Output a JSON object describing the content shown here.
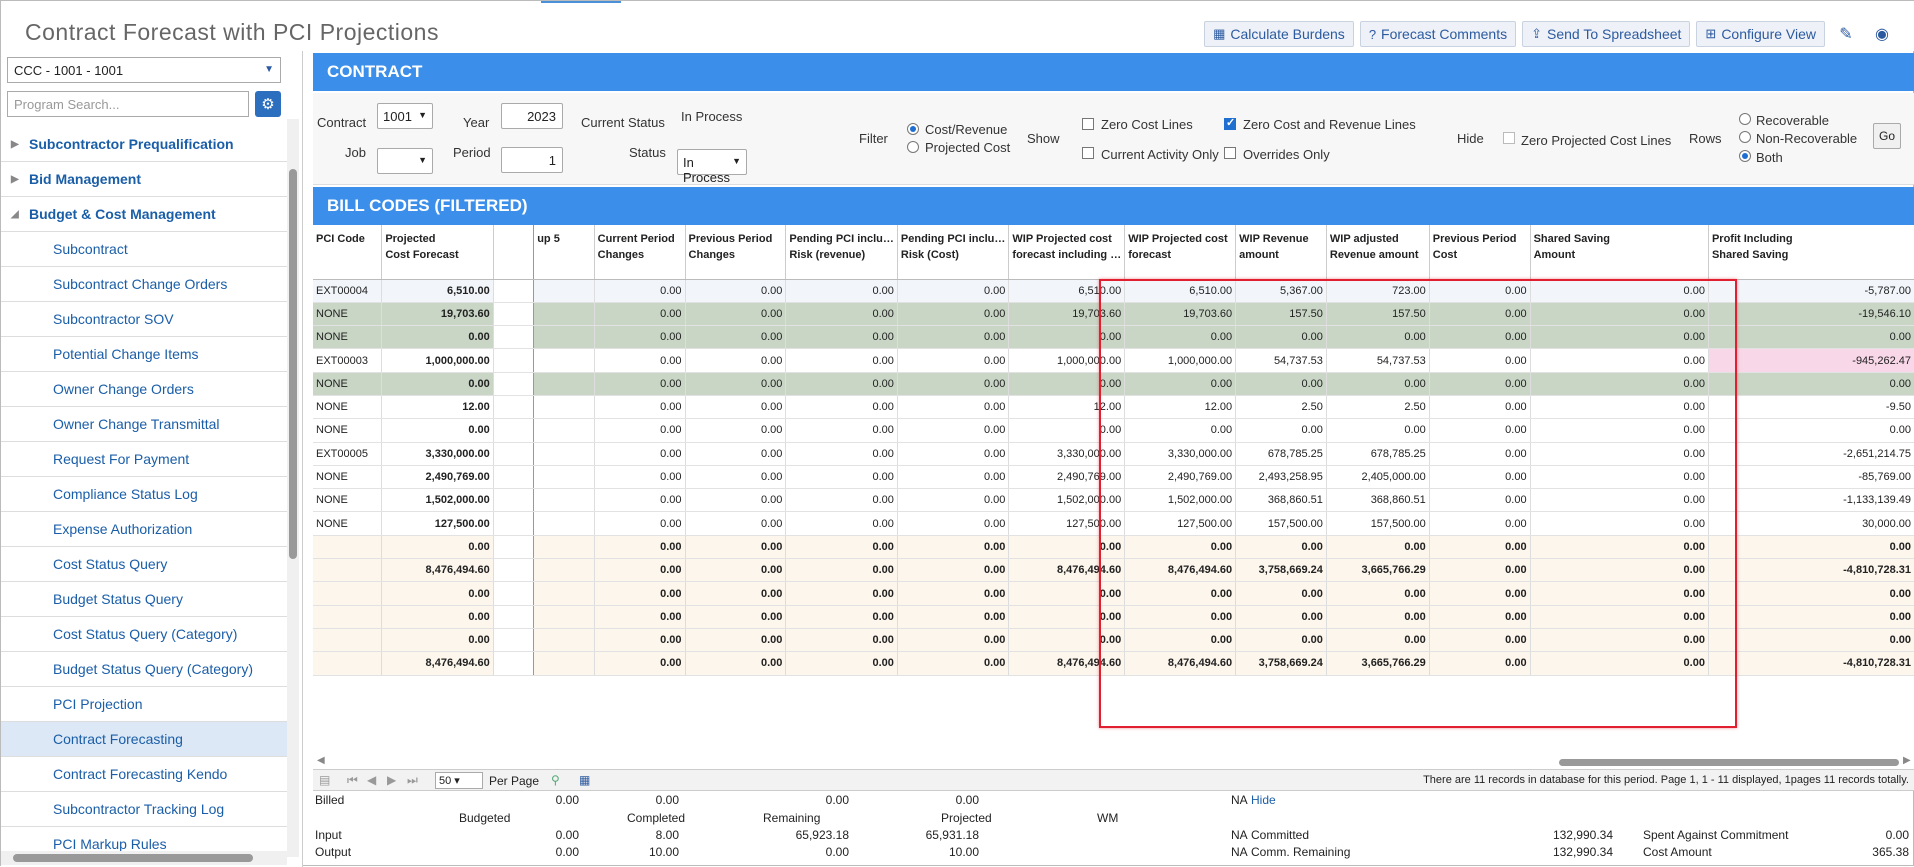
{
  "app_title": "Contract Forecast with PCI Projections",
  "header_buttons": {
    "calc": "Calculate Burdens",
    "comments": "Forecast Comments",
    "send": "Send To Spreadsheet",
    "configure": "Configure View"
  },
  "sidebar": {
    "company_select": "CCC - 1001 - 1001",
    "search_placeholder": "Program Search...",
    "items": [
      {
        "label": "Subcontractor Prequalification",
        "type": "group",
        "expanded": false
      },
      {
        "label": "Bid Management",
        "type": "group",
        "expanded": false
      },
      {
        "label": "Budget & Cost Management",
        "type": "group",
        "expanded": true
      },
      {
        "label": "Subcontract",
        "type": "child"
      },
      {
        "label": "Subcontract Change Orders",
        "type": "child"
      },
      {
        "label": "Subcontractor SOV",
        "type": "child"
      },
      {
        "label": "Potential Change Items",
        "type": "child"
      },
      {
        "label": "Owner Change Orders",
        "type": "child"
      },
      {
        "label": "Owner Change Transmittal",
        "type": "child"
      },
      {
        "label": "Request For Payment",
        "type": "child"
      },
      {
        "label": "Compliance Status Log",
        "type": "child"
      },
      {
        "label": "Expense Authorization",
        "type": "child"
      },
      {
        "label": "Cost Status Query",
        "type": "child"
      },
      {
        "label": "Budget Status Query",
        "type": "child"
      },
      {
        "label": "Cost Status Query (Category)",
        "type": "child"
      },
      {
        "label": "Budget Status Query (Category)",
        "type": "child"
      },
      {
        "label": "PCI Projection",
        "type": "child"
      },
      {
        "label": "Contract Forecasting",
        "type": "child",
        "active": true
      },
      {
        "label": "Contract Forecasting Kendo",
        "type": "child"
      },
      {
        "label": "Subcontractor Tracking Log",
        "type": "child"
      },
      {
        "label": "PCI Markup Rules",
        "type": "child"
      }
    ]
  },
  "contract_section": {
    "title": "CONTRACT",
    "contract_label": "Contract",
    "contract_value": "1001",
    "job_label": "Job",
    "job_value": "",
    "year_label": "Year",
    "year_value": "2023",
    "period_label": "Period",
    "period_value": "1",
    "current_status_label": "Current Status",
    "current_status_value": "In Process",
    "status_label": "Status",
    "status_value": "In Process",
    "filter_label": "Filter",
    "filter_cost_revenue": "Cost/Revenue",
    "filter_projected_cost": "Projected Cost",
    "show_label": "Show",
    "zero_cost_lines": "Zero Cost Lines",
    "current_activity_only": "Current Activity Only",
    "zero_cost_revenue_lines": "Zero Cost and Revenue Lines",
    "overrides_only": "Overrides Only",
    "hide_label": "Hide",
    "zero_projected_cost_lines": "Zero Projected Cost Lines",
    "rows_label": "Rows",
    "rows_recoverable": "Recoverable",
    "rows_nonrecoverable": "Non-Recoverable",
    "rows_both": "Both",
    "go": "Go"
  },
  "bill_codes": {
    "title": "BILL CODES (FILTERED)",
    "headers": [
      [
        "PCI Code",
        ""
      ],
      [
        "Projected",
        "Cost Forecast"
      ],
      [
        "",
        ""
      ],
      [
        "up 5",
        ""
      ],
      [
        "Current Period",
        "Changes"
      ],
      [
        "Previous Period",
        "Changes"
      ],
      [
        "Pending PCI inclu…",
        "Risk (revenue)"
      ],
      [
        "Pending PCI inclu…",
        "Risk (Cost)"
      ],
      [
        "WIP Projected cost",
        "forecast including …"
      ],
      [
        "WIP Projected cost",
        "forecast"
      ],
      [
        "WIP Revenue",
        "amount"
      ],
      [
        "WIP adjusted",
        "Revenue amount"
      ],
      [
        "Previous Period",
        "Cost"
      ],
      [
        "Shared Saving",
        "Amount"
      ],
      [
        "Profit Including",
        "Shared Saving"
      ]
    ],
    "rows": [
      {
        "style": "first",
        "cells": [
          "EXT00004",
          "6,510.00",
          "",
          "",
          "0.00",
          "0.00",
          "0.00",
          "0.00",
          "6,510.00",
          "6,510.00",
          "5,367.00",
          "723.00",
          "0.00",
          "0.00",
          "-5,787.00"
        ]
      },
      {
        "style": "green",
        "cells": [
          "NONE",
          "19,703.60",
          "",
          "",
          "0.00",
          "0.00",
          "0.00",
          "0.00",
          "19,703.60",
          "19,703.60",
          "157.50",
          "157.50",
          "0.00",
          "0.00",
          "-19,546.10"
        ]
      },
      {
        "style": "green",
        "cells": [
          "NONE",
          "0.00",
          "",
          "",
          "0.00",
          "0.00",
          "0.00",
          "0.00",
          "0.00",
          "0.00",
          "0.00",
          "0.00",
          "0.00",
          "0.00",
          "0.00"
        ]
      },
      {
        "style": "white",
        "pink_last": true,
        "cells": [
          "EXT00003",
          "1,000,000.00",
          "",
          "",
          "0.00",
          "0.00",
          "0.00",
          "0.00",
          "1,000,000.00",
          "1,000,000.00",
          "54,737.53",
          "54,737.53",
          "0.00",
          "0.00",
          "-945,262.47"
        ]
      },
      {
        "style": "green",
        "cells": [
          "NONE",
          "0.00",
          "",
          "",
          "0.00",
          "0.00",
          "0.00",
          "0.00",
          "0.00",
          "0.00",
          "0.00",
          "0.00",
          "0.00",
          "0.00",
          "0.00"
        ]
      },
      {
        "style": "white",
        "cells": [
          "NONE",
          "12.00",
          "",
          "",
          "0.00",
          "0.00",
          "0.00",
          "0.00",
          "12.00",
          "12.00",
          "2.50",
          "2.50",
          "0.00",
          "0.00",
          "-9.50"
        ]
      },
      {
        "style": "white",
        "cells": [
          "NONE",
          "0.00",
          "",
          "",
          "0.00",
          "0.00",
          "0.00",
          "0.00",
          "0.00",
          "0.00",
          "0.00",
          "0.00",
          "0.00",
          "0.00",
          "0.00"
        ]
      },
      {
        "style": "white",
        "cells": [
          "EXT00005",
          "3,330,000.00",
          "",
          "",
          "0.00",
          "0.00",
          "0.00",
          "0.00",
          "3,330,000.00",
          "3,330,000.00",
          "678,785.25",
          "678,785.25",
          "0.00",
          "0.00",
          "-2,651,214.75"
        ]
      },
      {
        "style": "white",
        "cells": [
          "NONE",
          "2,490,769.00",
          "",
          "",
          "0.00",
          "0.00",
          "0.00",
          "0.00",
          "2,490,769.00",
          "2,490,769.00",
          "2,493,258.95",
          "2,405,000.00",
          "0.00",
          "0.00",
          "-85,769.00"
        ]
      },
      {
        "style": "white",
        "cells": [
          "NONE",
          "1,502,000.00",
          "",
          "",
          "0.00",
          "0.00",
          "0.00",
          "0.00",
          "1,502,000.00",
          "1,502,000.00",
          "368,860.51",
          "368,860.51",
          "0.00",
          "0.00",
          "-1,133,139.49"
        ]
      },
      {
        "style": "white",
        "cells": [
          "NONE",
          "127,500.00",
          "",
          "",
          "0.00",
          "0.00",
          "0.00",
          "0.00",
          "127,500.00",
          "127,500.00",
          "157,500.00",
          "157,500.00",
          "0.00",
          "0.00",
          "30,000.00"
        ]
      },
      {
        "style": "cream",
        "cells": [
          "",
          "0.00",
          "",
          "",
          "0.00",
          "0.00",
          "0.00",
          "0.00",
          "0.00",
          "0.00",
          "0.00",
          "0.00",
          "0.00",
          "0.00",
          "0.00"
        ]
      },
      {
        "style": "cream",
        "cells": [
          "",
          "8,476,494.60",
          "",
          "",
          "0.00",
          "0.00",
          "0.00",
          "0.00",
          "8,476,494.60",
          "8,476,494.60",
          "3,758,669.24",
          "3,665,766.29",
          "0.00",
          "0.00",
          "-4,810,728.31"
        ]
      },
      {
        "style": "cream",
        "cells": [
          "",
          "0.00",
          "",
          "",
          "0.00",
          "0.00",
          "0.00",
          "0.00",
          "0.00",
          "0.00",
          "0.00",
          "0.00",
          "0.00",
          "0.00",
          "0.00"
        ]
      },
      {
        "style": "cream",
        "cells": [
          "",
          "0.00",
          "",
          "",
          "0.00",
          "0.00",
          "0.00",
          "0.00",
          "0.00",
          "0.00",
          "0.00",
          "0.00",
          "0.00",
          "0.00",
          "0.00"
        ]
      },
      {
        "style": "cream",
        "cells": [
          "",
          "0.00",
          "",
          "",
          "0.00",
          "0.00",
          "0.00",
          "0.00",
          "0.00",
          "0.00",
          "0.00",
          "0.00",
          "0.00",
          "0.00",
          "0.00"
        ]
      },
      {
        "style": "cream",
        "cells": [
          "",
          "8,476,494.60",
          "",
          "",
          "0.00",
          "0.00",
          "0.00",
          "0.00",
          "8,476,494.60",
          "8,476,494.60",
          "3,758,669.24",
          "3,665,766.29",
          "0.00",
          "0.00",
          "-4,810,728.31"
        ]
      }
    ]
  },
  "pager": {
    "page_size": "50",
    "per_page_label": "Per Page",
    "records_text": "There are 11 records in database for this period.  Page 1, 1 - 11 displayed, 1pages 11 records totally."
  },
  "summary": {
    "billed_label": "Billed",
    "billed_values": [
      "0.00",
      "0.00",
      "0.00",
      "0.00"
    ],
    "billed_na": "NA",
    "hide_link": "Hide",
    "budgeted": "Budgeted",
    "completed": "Completed",
    "remaining": "Remaining",
    "projected": "Projected",
    "wm": "WM",
    "input_label": "Input",
    "input_values": [
      "0.00",
      "8.00",
      "65,923.18",
      "65,931.18"
    ],
    "input_na": "NA",
    "committed_label": "Committed",
    "committed_value": "132,990.34",
    "spent_label": "Spent Against Commitment",
    "spent_value": "0.00",
    "output_label": "Output",
    "output_values": [
      "0.00",
      "10.00",
      "0.00",
      "10.00"
    ],
    "output_na": "NA",
    "comm_remaining_label": "Comm. Remaining",
    "comm_remaining_value": "132,990.34",
    "cost_amount_label": "Cost Amount",
    "cost_amount_value": "365.38"
  }
}
